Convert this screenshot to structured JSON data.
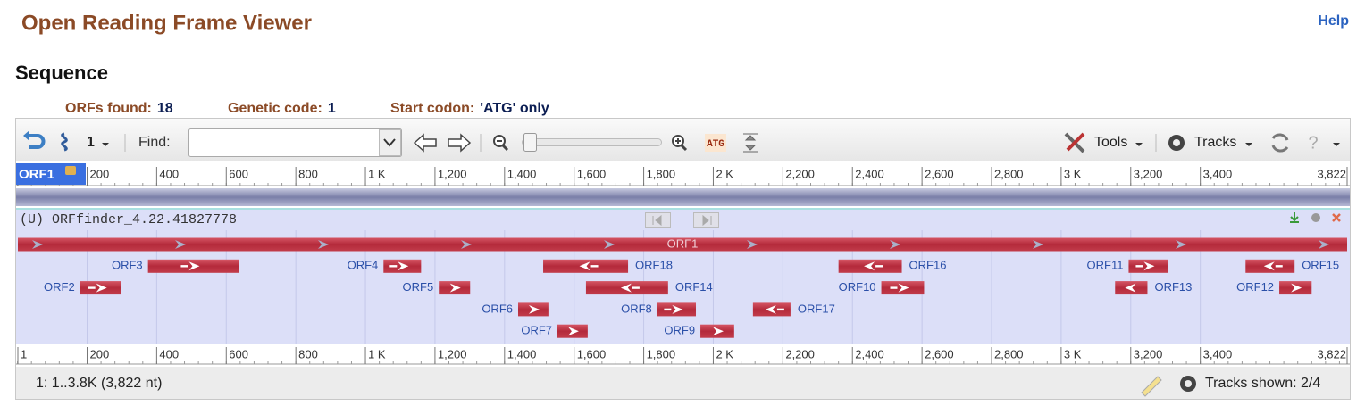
{
  "header": {
    "title": "Open Reading Frame Viewer",
    "help": "Help"
  },
  "section": {
    "title": "Sequence"
  },
  "summary": [
    {
      "label": "ORFs found:",
      "value": "18"
    },
    {
      "label": "Genetic code:",
      "value": "1"
    },
    {
      "label": "Start codon:",
      "value": "'ATG' only"
    }
  ],
  "toolbar": {
    "sequence_number": "1",
    "find_label": "Find:",
    "tools": "Tools",
    "tracks": "Tracks"
  },
  "ruler": {
    "selected": "ORF1",
    "ticks": [
      {
        "value": 1,
        "label": "1"
      },
      200,
      400,
      600,
      800,
      {
        "value": 1000,
        "label": "1 K"
      },
      {
        "value": 1200,
        "label": "1,200"
      },
      {
        "value": 1400,
        "label": "1,400"
      },
      {
        "value": 1600,
        "label": "1,600"
      },
      {
        "value": 1800,
        "label": "1,800"
      },
      {
        "value": 2000,
        "label": "2 K"
      },
      {
        "value": 2200,
        "label": "2,200"
      },
      {
        "value": 2400,
        "label": "2,400"
      },
      {
        "value": 2600,
        "label": "2,600"
      },
      {
        "value": 2800,
        "label": "2,800"
      },
      {
        "value": 3000,
        "label": "3 K"
      },
      {
        "value": 3200,
        "label": "3,200"
      },
      {
        "value": 3400,
        "label": "3,400"
      },
      {
        "value": 3822,
        "label": "3,822"
      }
    ]
  },
  "track": {
    "name": "(U) ORFfinder_4.22.41827778",
    "rows": [
      [
        {
          "label": "ORF1",
          "start": 1,
          "end": 3822,
          "strand": "+"
        }
      ],
      [
        {
          "label": "ORF3",
          "start": 375,
          "end": 636,
          "strand": "+"
        },
        {
          "label": "ORF4",
          "start": 1052,
          "end": 1160,
          "strand": "+"
        },
        {
          "label": "ORF18",
          "start": 1511,
          "end": 1755,
          "strand": "-"
        },
        {
          "label": "ORF16",
          "start": 2360,
          "end": 2542,
          "strand": "-"
        },
        {
          "label": "ORF11",
          "start": 3194,
          "end": 3307,
          "strand": "+"
        },
        {
          "label": "ORF15",
          "start": 3530,
          "end": 3671,
          "strand": "-"
        }
      ],
      [
        {
          "label": "ORF2",
          "start": 180,
          "end": 298,
          "strand": "+"
        },
        {
          "label": "ORF5",
          "start": 1211,
          "end": 1301,
          "strand": "+"
        },
        {
          "label": "ORF14",
          "start": 1634,
          "end": 1870,
          "strand": "-"
        },
        {
          "label": "ORF10",
          "start": 2483,
          "end": 2606,
          "strand": "+"
        },
        {
          "label": "ORF13",
          "start": 3155,
          "end": 3248,
          "strand": "-"
        },
        {
          "label": "ORF12",
          "start": 3627,
          "end": 3720,
          "strand": "+"
        }
      ],
      [
        {
          "label": "ORF6",
          "start": 1439,
          "end": 1526,
          "strand": "+"
        },
        {
          "label": "ORF8",
          "start": 1839,
          "end": 1950,
          "strand": "+"
        },
        {
          "label": "ORF17",
          "start": 2114,
          "end": 2222,
          "strand": "-"
        }
      ],
      [
        {
          "label": "ORF7",
          "start": 1552,
          "end": 1639,
          "strand": "+"
        },
        {
          "label": "ORF9",
          "start": 1963,
          "end": 2060,
          "strand": "+"
        }
      ]
    ]
  },
  "status": {
    "range": "1: 1..3.8K (3,822 nt)",
    "tracks_shown": "Tracks shown: 2/4"
  }
}
